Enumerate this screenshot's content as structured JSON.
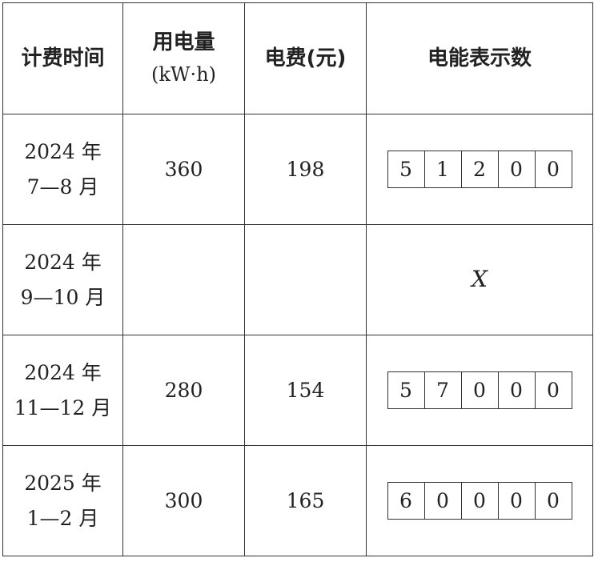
{
  "headers": {
    "time": "计费时间",
    "usage_line1": "用电量",
    "usage_unit": "(kW·h)",
    "fee": "电费(元)",
    "meter": "电能表示数"
  },
  "rows": [
    {
      "year": "2024 年",
      "months": "7—8 月",
      "usage": "360",
      "fee": "198",
      "meter": [
        "5",
        "1",
        "2",
        "0",
        "0"
      ],
      "meter_text": ""
    },
    {
      "year": "2024 年",
      "months": "9—10 月",
      "usage": "",
      "fee": "",
      "meter": [],
      "meter_text": "X"
    },
    {
      "year": "2024 年",
      "months": "11—12 月",
      "usage": "280",
      "fee": "154",
      "meter": [
        "5",
        "7",
        "0",
        "0",
        "0"
      ],
      "meter_text": ""
    },
    {
      "year": "2025 年",
      "months": "1—2 月",
      "usage": "300",
      "fee": "165",
      "meter": [
        "6",
        "0",
        "0",
        "0",
        "0"
      ],
      "meter_text": ""
    }
  ]
}
